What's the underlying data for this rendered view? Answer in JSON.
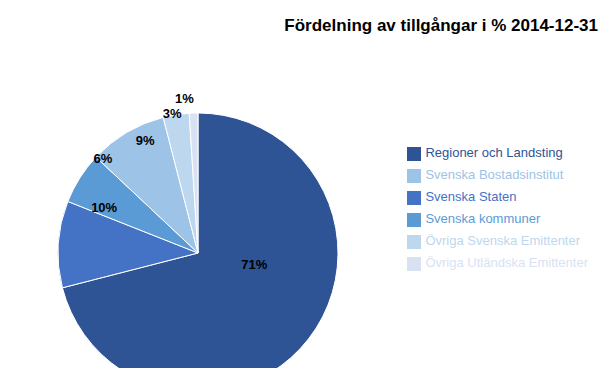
{
  "chart_data": {
    "type": "pie",
    "title": "Fördelning av tillgångar i % 2014-12-31",
    "categories": [
      "Regioner och Landsting",
      "Svenska Staten",
      "Svenska kommuner",
      "Svenska Bostadsinstitut",
      "Övriga Svenska Emittenter",
      "Övriga Utländska Emittenter"
    ],
    "values": [
      71,
      10,
      6,
      9,
      3,
      1
    ],
    "value_labels": [
      "71%",
      "10%",
      "6%",
      "9%",
      "3%",
      "1%"
    ],
    "colors": [
      "#2E5496",
      "#4472C4",
      "#5B9BD5",
      "#9DC3E6",
      "#BDD7EE",
      "#D9E2F3"
    ],
    "data_labels": true,
    "legend": "right"
  }
}
